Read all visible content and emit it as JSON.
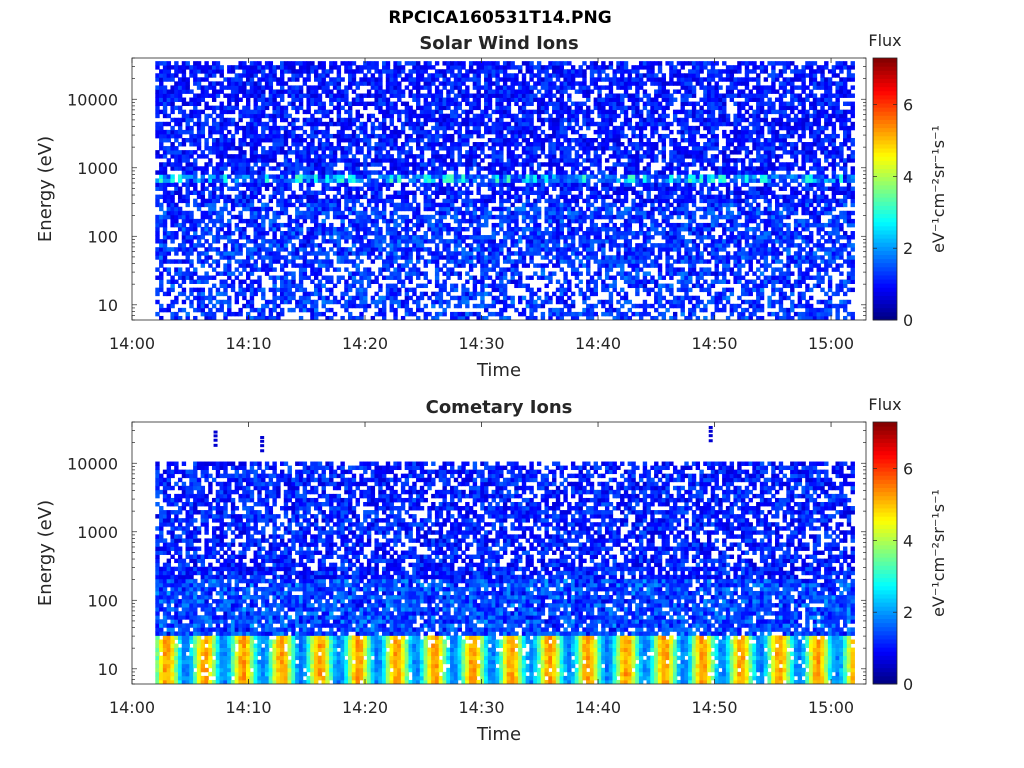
{
  "figure_title": "RPCICA160531T14.PNG",
  "chart_data": [
    {
      "type": "heatmap",
      "title": "Solar Wind Ions",
      "xlabel": "Time",
      "ylabel": "Energy (eV)",
      "x_tick_labels": [
        "14:00",
        "14:10",
        "14:20",
        "14:30",
        "14:40",
        "14:50",
        "15:00"
      ],
      "x_range": [
        "14:00",
        "15:03"
      ],
      "y_tick_labels": [
        "10",
        "100",
        "1000",
        "10000"
      ],
      "y_scale": "log",
      "ylim": [
        6,
        40000
      ],
      "data_start": "14:02",
      "data_end": "15:02",
      "colorbar": {
        "title": "Flux",
        "label": "eV⁻¹cm⁻²sr⁻¹s⁻¹",
        "ticks": [
          "0",
          "2",
          "4",
          "6"
        ],
        "range": [
          0,
          7.3
        ],
        "colormap": "jet"
      },
      "features": {
        "peak_energy_ev": 700,
        "peak_flux": 3.2,
        "background_flux": 0.6,
        "max_flux": 3.2
      }
    },
    {
      "type": "heatmap",
      "title": "Cometary Ions",
      "xlabel": "Time",
      "ylabel": "Energy (eV)",
      "x_tick_labels": [
        "14:00",
        "14:10",
        "14:20",
        "14:30",
        "14:40",
        "14:50",
        "15:00"
      ],
      "x_range": [
        "14:00",
        "15:03"
      ],
      "y_tick_labels": [
        "10",
        "100",
        "1000",
        "10000"
      ],
      "y_scale": "log",
      "ylim": [
        6,
        40000
      ],
      "data_start": "14:02",
      "data_end": "15:02",
      "colorbar": {
        "title": "Flux",
        "label": "eV⁻¹cm⁻²sr⁻¹s⁻¹",
        "ticks": [
          "0",
          "2",
          "4",
          "6"
        ],
        "range": [
          0,
          7.3
        ],
        "colormap": "jet"
      },
      "features": {
        "peak_energy_ev": 12,
        "peak_flux": 5.0,
        "background_flux": 0.6,
        "max_flux": 5.2
      }
    }
  ]
}
